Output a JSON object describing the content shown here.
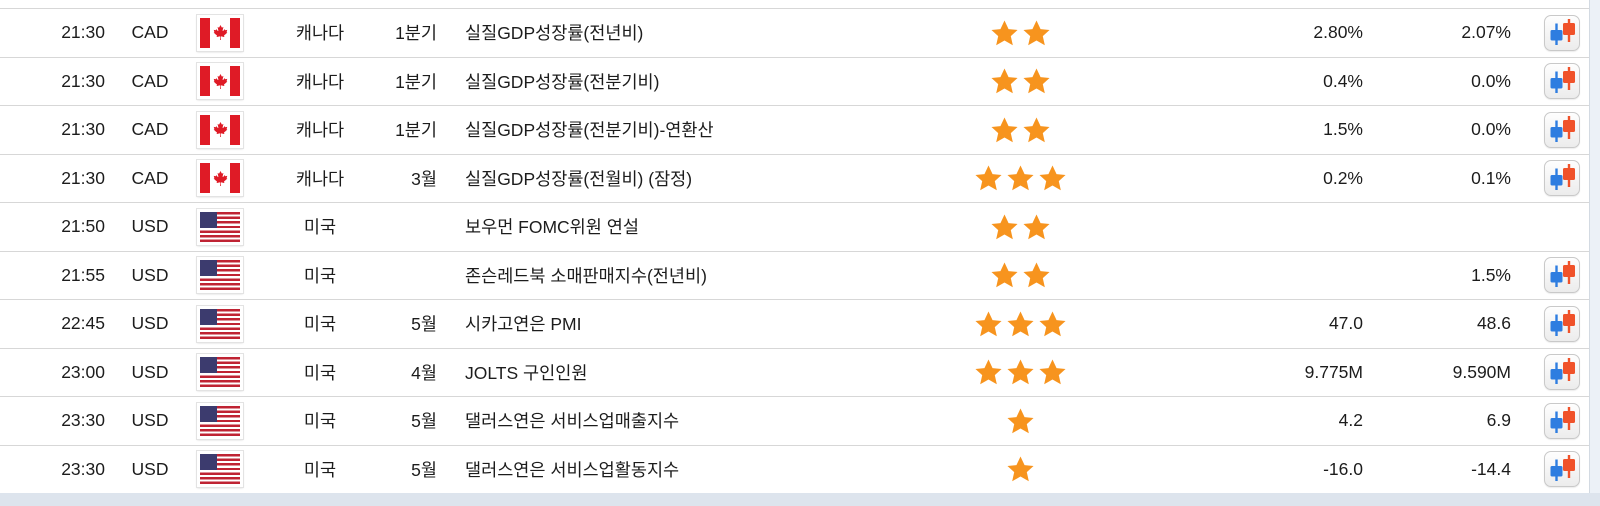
{
  "table": {
    "rows": [
      {
        "time": "21:30",
        "currency": "CAD",
        "flag": "canada",
        "country": "캐나다",
        "period": "1분기",
        "event": "실질GDP성장률(전년비)",
        "stars": 2,
        "value1": "2.80%",
        "value2": "2.07%",
        "chart": true
      },
      {
        "time": "21:30",
        "currency": "CAD",
        "flag": "canada",
        "country": "캐나다",
        "period": "1분기",
        "event": "실질GDP성장률(전분기비)",
        "stars": 2,
        "value1": "0.4%",
        "value2": "0.0%",
        "chart": true
      },
      {
        "time": "21:30",
        "currency": "CAD",
        "flag": "canada",
        "country": "캐나다",
        "period": "1분기",
        "event": "실질GDP성장률(전분기비)-연환산",
        "stars": 2,
        "value1": "1.5%",
        "value2": "0.0%",
        "chart": true
      },
      {
        "time": "21:30",
        "currency": "CAD",
        "flag": "canada",
        "country": "캐나다",
        "period": "3월",
        "event": "실질GDP성장률(전월비) (잠정)",
        "stars": 3,
        "value1": "0.2%",
        "value2": "0.1%",
        "chart": true
      },
      {
        "time": "21:50",
        "currency": "USD",
        "flag": "usa",
        "country": "미국",
        "period": "",
        "event": "보우먼 FOMC위원 연설",
        "stars": 2,
        "value1": "",
        "value2": "",
        "chart": false
      },
      {
        "time": "21:55",
        "currency": "USD",
        "flag": "usa",
        "country": "미국",
        "period": "",
        "event": "존슨레드북 소매판매지수(전년비)",
        "stars": 2,
        "value1": "",
        "value2": "1.5%",
        "chart": true
      },
      {
        "time": "22:45",
        "currency": "USD",
        "flag": "usa",
        "country": "미국",
        "period": "5월",
        "event": "시카고연은 PMI",
        "stars": 3,
        "value1": "47.0",
        "value2": "48.6",
        "chart": true
      },
      {
        "time": "23:00",
        "currency": "USD",
        "flag": "usa",
        "country": "미국",
        "period": "4월",
        "event": "JOLTS 구인인원",
        "stars": 3,
        "value1": "9.775M",
        "value2": "9.590M",
        "chart": true
      },
      {
        "time": "23:30",
        "currency": "USD",
        "flag": "usa",
        "country": "미국",
        "period": "5월",
        "event": "댈러스연은 서비스업매출지수",
        "stars": 1,
        "value1": "4.2",
        "value2": "6.9",
        "chart": true
      },
      {
        "time": "23:30",
        "currency": "USD",
        "flag": "usa",
        "country": "미국",
        "period": "5월",
        "event": "댈러스연은 서비스업활동지수",
        "stars": 1,
        "value1": "-16.0",
        "value2": "-14.4",
        "chart": true
      }
    ]
  },
  "icons": {
    "importance": "star-icon",
    "chart": "candlestick-chart-icon",
    "flags": [
      "canada-flag-icon",
      "usa-flag-icon"
    ]
  },
  "colors": {
    "star": "#F7941E",
    "candle_blue": "#2E7DE0",
    "candle_red": "#F0522A",
    "canada_red": "#DF1B26",
    "us_stripe_red": "#BF2333",
    "us_canton_blue": "#3C3B6E",
    "row_border": "#d7d7d7",
    "page_strip": "#dde4ed"
  }
}
